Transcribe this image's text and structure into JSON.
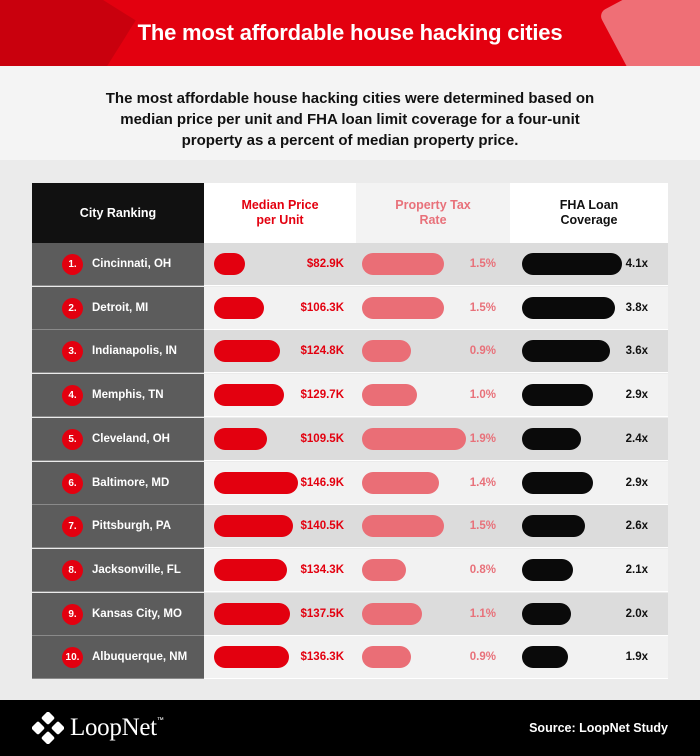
{
  "header": {
    "title": "The most affordable house hacking cities"
  },
  "subtitle": {
    "lines": [
      "The most affordable house hacking cities were determined based on",
      "median price per unit and FHA loan limit coverage for a four-unit",
      "property as a percent of  median property price."
    ]
  },
  "columns": {
    "city": "City Ranking",
    "price": [
      "Median Price",
      "per Unit"
    ],
    "tax": [
      "Property Tax",
      "Rate"
    ],
    "fha": [
      "FHA Loan",
      "Coverage"
    ]
  },
  "colors": {
    "red": "#e3000f",
    "pink": "#ea6e76",
    "black": "#0a0a0a"
  },
  "chart_data": {
    "type": "table",
    "title": "The most affordable house hacking cities",
    "rows": [
      {
        "rank": "1.",
        "city": "Cincinnati, OH",
        "price": 82.9,
        "price_label": "$82.9K",
        "tax": 1.5,
        "tax_label": "1.5%",
        "fha": 4.1,
        "fha_label": "4.1x"
      },
      {
        "rank": "2.",
        "city": "Detroit, MI",
        "price": 106.3,
        "price_label": "$106.3K",
        "tax": 1.5,
        "tax_label": "1.5%",
        "fha": 3.8,
        "fha_label": "3.8x"
      },
      {
        "rank": "3.",
        "city": "Indianapolis, IN",
        "price": 124.8,
        "price_label": "$124.8K",
        "tax": 0.9,
        "tax_label": "0.9%",
        "fha": 3.6,
        "fha_label": "3.6x"
      },
      {
        "rank": "4.",
        "city": "Memphis, TN",
        "price": 129.7,
        "price_label": "$129.7K",
        "tax": 1.0,
        "tax_label": "1.0%",
        "fha": 2.9,
        "fha_label": "2.9x"
      },
      {
        "rank": "5.",
        "city": "Cleveland, OH",
        "price": 109.5,
        "price_label": "$109.5K",
        "tax": 1.9,
        "tax_label": "1.9%",
        "fha": 2.4,
        "fha_label": "2.4x"
      },
      {
        "rank": "6.",
        "city": "Baltimore, MD",
        "price": 146.9,
        "price_label": "$146.9K",
        "tax": 1.4,
        "tax_label": "1.4%",
        "fha": 2.9,
        "fha_label": "2.9x"
      },
      {
        "rank": "7.",
        "city": "Pittsburgh, PA",
        "price": 140.5,
        "price_label": "$140.5K",
        "tax": 1.5,
        "tax_label": "1.5%",
        "fha": 2.6,
        "fha_label": "2.6x"
      },
      {
        "rank": "8.",
        "city": "Jacksonville, FL",
        "price": 134.3,
        "price_label": "$134.3K",
        "tax": 0.8,
        "tax_label": "0.8%",
        "fha": 2.1,
        "fha_label": "2.1x"
      },
      {
        "rank": "9.",
        "city": "Kansas City, MO",
        "price": 137.5,
        "price_label": "$137.5K",
        "tax": 1.1,
        "tax_label": "1.1%",
        "fha": 2.0,
        "fha_label": "2.0x"
      },
      {
        "rank": "10.",
        "city": "Albuquerque, NM",
        "price": 136.3,
        "price_label": "$136.3K",
        "tax": 0.9,
        "tax_label": "0.9%",
        "fha": 1.9,
        "fha_label": "1.9x"
      }
    ]
  },
  "footer": {
    "logo_text": "LoopNet",
    "logo_tm": "™",
    "source": "Source: LoopNet Study"
  }
}
